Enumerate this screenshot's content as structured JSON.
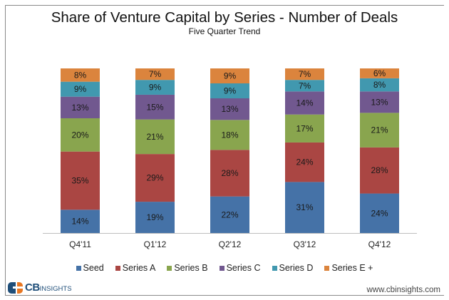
{
  "chart_data": {
    "type": "bar",
    "stacked": true,
    "title": "Share of Venture Capital by Series - Number of Deals",
    "subtitle": "Five Quarter Trend",
    "xlabel": "",
    "ylabel": "",
    "ylim": [
      0,
      100
    ],
    "grid": false,
    "legend_position": "bottom",
    "categories": [
      "Q4'11",
      "Q1'12",
      "Q2'12",
      "Q3'12",
      "Q4'12"
    ],
    "series": [
      {
        "name": "Seed",
        "color": "#4572a7",
        "values": [
          14,
          19,
          22,
          31,
          24
        ]
      },
      {
        "name": "Series A",
        "color": "#aa4643",
        "values": [
          35,
          29,
          28,
          24,
          28
        ]
      },
      {
        "name": "Series B",
        "color": "#89a54e",
        "values": [
          20,
          21,
          18,
          17,
          21
        ]
      },
      {
        "name": "Series C",
        "color": "#71588f",
        "values": [
          13,
          15,
          13,
          14,
          13
        ]
      },
      {
        "name": "Series D",
        "color": "#4198af",
        "values": [
          9,
          9,
          9,
          7,
          8
        ]
      },
      {
        "name": "Series E +",
        "color": "#db843d",
        "values": [
          8,
          7,
          9,
          7,
          6
        ]
      }
    ],
    "data_label_suffix": "%"
  },
  "footer": {
    "logo_cb": "CB",
    "logo_insights": "INSIGHTS",
    "url": "www.cbinsights.com"
  }
}
